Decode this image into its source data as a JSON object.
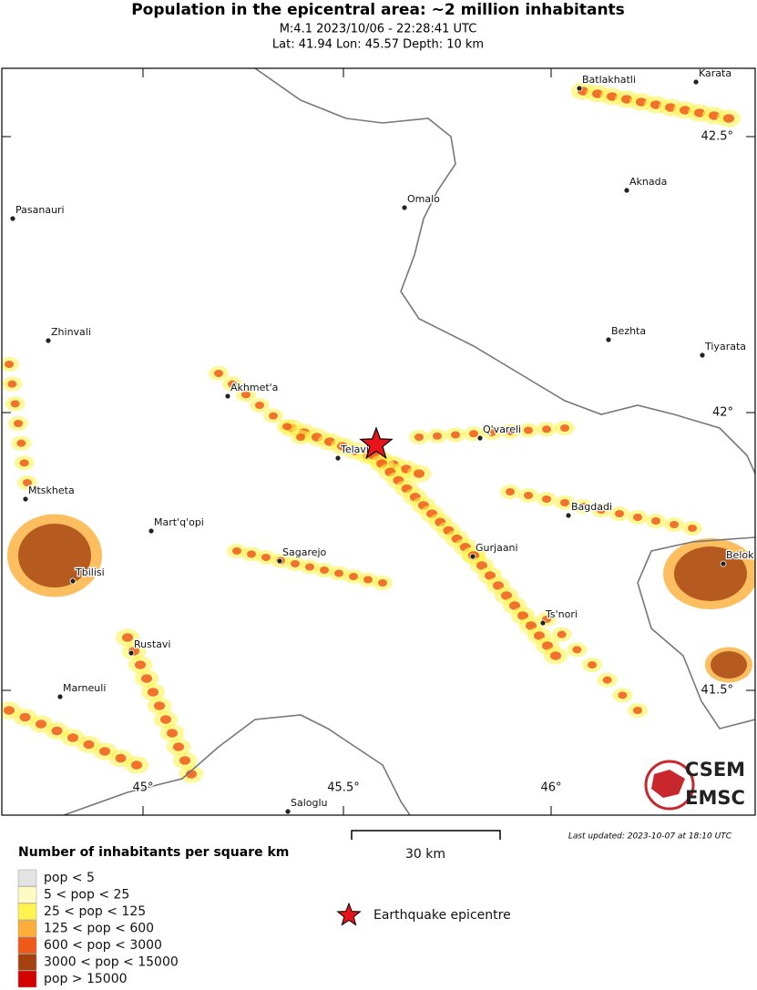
{
  "header": {
    "title": "Population in the epicentral area: ~2 million inhabitants",
    "event": "M:4.1 2023/10/06 - 22:28:41 UTC",
    "location": "Lat: 41.94 Lon: 45.57 Depth: 10 km"
  },
  "map": {
    "cities": [
      "Batlakhatli",
      "Karata",
      "Aknada",
      "Omalo",
      "Pasanauri",
      "Zhinvali",
      "Bezhta",
      "Tiyarata",
      "Akhmet'a",
      "Q'vareli",
      "Telavi",
      "Mtskheta",
      "Bagdadi",
      "Mart'q'opi",
      "Sagarejo",
      "Gurjaani",
      "Belok",
      "Tbilisi",
      "Ts'nori",
      "Rustavi",
      "Marneuli",
      "Saloglu"
    ],
    "lat_labels": [
      "42.5°",
      "42°",
      "41.5°"
    ],
    "lon_labels": [
      "45°",
      "45.5°",
      "46°"
    ]
  },
  "logo": {
    "top": "CSEM",
    "bottom": "EMSC"
  },
  "scale_bar": "30 km",
  "last_updated": "Last updated: 2023-10-07 at 18:10 UTC",
  "legend": {
    "title": "Number of inhabitants per square km",
    "classes": [
      {
        "label": "pop < 5",
        "color": "#e3e3e3"
      },
      {
        "label": "5 < pop < 25",
        "color": "#fffbc2"
      },
      {
        "label": "25 < pop < 125",
        "color": "#fff350"
      },
      {
        "label": "125 < pop < 600",
        "color": "#fdae38"
      },
      {
        "label": "600 < pop < 3000",
        "color": "#ef5a18"
      },
      {
        "label": "3000 < pop < 15000",
        "color": "#a4420f"
      },
      {
        "label": "pop > 15000",
        "color": "#d40000"
      }
    ],
    "epicentre": "Earthquake epicentre"
  }
}
